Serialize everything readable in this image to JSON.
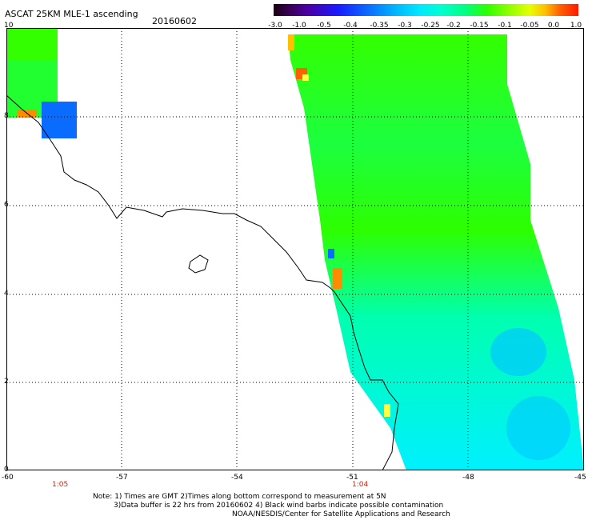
{
  "header": {
    "title": "ASCAT 25KM MLE-1 ascending",
    "date": "20160602"
  },
  "colorbar": {
    "ticks": [
      "-3.0",
      "-1.0",
      "-0.5",
      "-0.4",
      "-0.35",
      "-0.3",
      "-0.25",
      "-0.2",
      "-0.15",
      "-0.1",
      "-0.05",
      "0.0",
      "1.0"
    ]
  },
  "axes": {
    "y_labels": [
      "10",
      "8",
      "6",
      "4",
      "2",
      "0"
    ],
    "x_labels": [
      "-60",
      "-57",
      "-54",
      "-51",
      "-48",
      "-45"
    ]
  },
  "pass_times": [
    "1:05",
    "1:04"
  ],
  "notes": {
    "line1": "Note: 1) Times are GMT 2)Times along bottom correspond to measurement at 5N",
    "line2": "3)Data buffer is 22 hrs from 20160602 4) Black wind barbs indicate possible contamination",
    "line3": "NOAA/NESDIS/Center for Satellite Applications and Research"
  },
  "colors": {
    "green": "#33ff00",
    "cyan": "#00ffd0",
    "blue": "#0a6cff",
    "orange": "#ff8c00"
  }
}
